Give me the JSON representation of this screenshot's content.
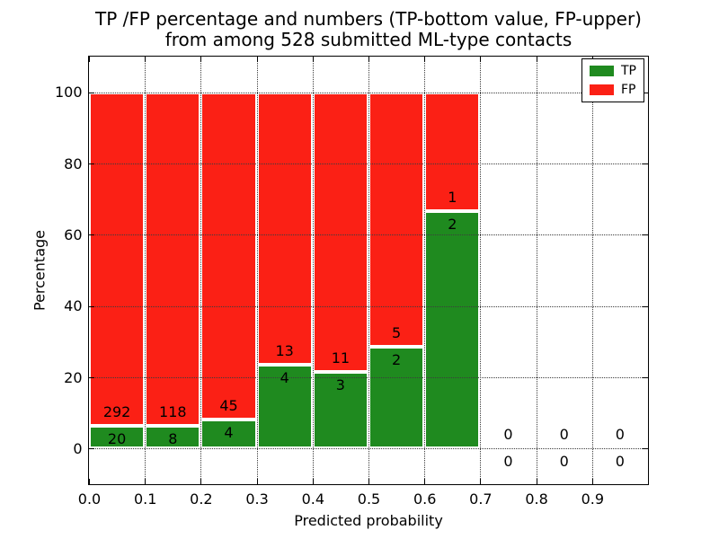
{
  "chart_data": {
    "type": "bar",
    "variant": "stacked-percentage-histogram",
    "title_lines": [
      "TP /FP percentage and numbers (TP-bottom value, FP-upper)",
      "from among 528 submitted ML-type contacts"
    ],
    "xlabel": "Predicted probability",
    "ylabel": "Percentage",
    "xlim": [
      0.0,
      1.0
    ],
    "ylim": [
      -10,
      110
    ],
    "x_tick_labels": [
      "0.0",
      "0.1",
      "0.2",
      "0.3",
      "0.4",
      "0.5",
      "0.6",
      "0.7",
      "0.8",
      "0.9"
    ],
    "y_ticks": [
      0,
      20,
      40,
      60,
      80,
      100
    ],
    "bin_width": 0.1,
    "bin_starts": [
      0.0,
      0.1,
      0.2,
      0.3,
      0.4,
      0.5,
      0.6,
      0.7,
      0.8,
      0.9
    ],
    "categories": [
      "0.0-0.1",
      "0.1-0.2",
      "0.2-0.3",
      "0.3-0.4",
      "0.4-0.5",
      "0.5-0.6",
      "0.6-0.7",
      "0.7-0.8",
      "0.8-0.9",
      "0.9-1.0"
    ],
    "series": [
      {
        "name": "TP",
        "color": "#1f8a1f",
        "values": [
          20,
          8,
          4,
          4,
          3,
          2,
          2,
          0,
          0,
          0
        ]
      },
      {
        "name": "FP",
        "color": "#fb2015",
        "values": [
          292,
          118,
          45,
          13,
          11,
          5,
          1,
          0,
          0,
          0
        ]
      }
    ],
    "tp_percent_by_bin": [
      6.4,
      6.3,
      8.2,
      23.5,
      21.4,
      28.6,
      66.7,
      0,
      0,
      0
    ],
    "total_contacts": 528,
    "legend": {
      "position": "upper-right",
      "entries": [
        "TP",
        "FP"
      ]
    },
    "grid": {
      "visible": true,
      "style": "dotted",
      "color": "#3c3c3c",
      "on_top_of_bars": true
    },
    "bar_edge_color": "#ffffff",
    "background_color": "#ffffff",
    "text_color": "#000000"
  }
}
